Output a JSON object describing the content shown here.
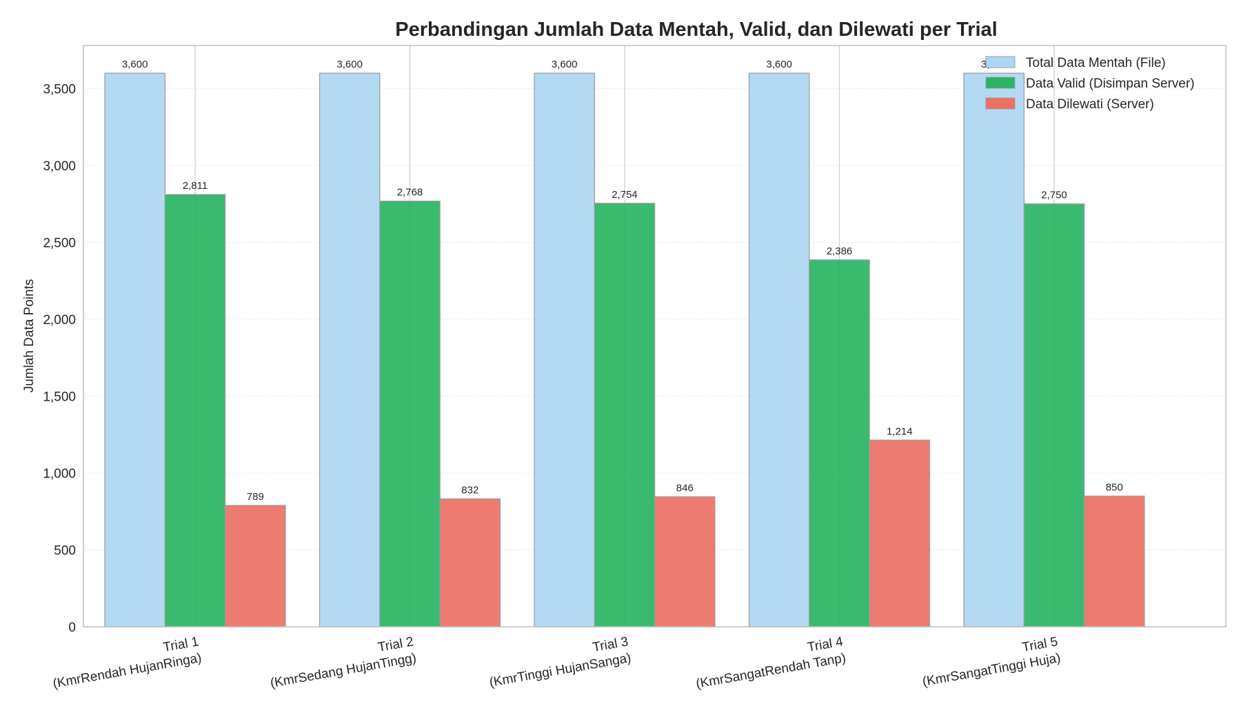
{
  "chart_data": {
    "type": "bar",
    "title": "Perbandingan Jumlah Data Mentah, Valid, dan Dilewati per Trial",
    "xlabel": "",
    "ylabel": "Jumlah Data Points",
    "ylim": [
      0,
      3780
    ],
    "yticks": [
      0,
      500,
      1000,
      1500,
      2000,
      2500,
      3000,
      3500
    ],
    "ytick_labels": [
      "0",
      "500",
      "1,000",
      "1,500",
      "2,000",
      "2,500",
      "3,000",
      "3,500"
    ],
    "grid": true,
    "legend_position": "top-right",
    "categories": [
      [
        "Trial 1",
        "(KmrRendah HujanRinga)"
      ],
      [
        "Trial 2",
        "(KmrSedang HujanTingg)"
      ],
      [
        "Trial 3",
        "(KmrTinggi HujanSanga)"
      ],
      [
        "Trial 4",
        "(KmrSangatRendah Tanp)"
      ],
      [
        "Trial 5",
        "(KmrSangatTinggi Huja)"
      ]
    ],
    "series": [
      {
        "name": "Total Data Mentah (File)",
        "color": "#aed6f1",
        "values": [
          3600,
          3600,
          3600,
          3600,
          3600
        ],
        "labels": [
          "3,600",
          "3,600",
          "3,600",
          "3,600",
          "3,600"
        ]
      },
      {
        "name": "Data Valid (Disimpan Server)",
        "color": "#28b463",
        "values": [
          2811,
          2768,
          2754,
          2386,
          2750
        ],
        "labels": [
          "2,811",
          "2,768",
          "2,754",
          "2,386",
          "2,750"
        ]
      },
      {
        "name": "Data Dilewati (Server)",
        "color": "#ec7063",
        "values": [
          789,
          832,
          846,
          1214,
          850
        ],
        "labels": [
          "789",
          "832",
          "846",
          "1,214",
          "850"
        ]
      }
    ]
  }
}
